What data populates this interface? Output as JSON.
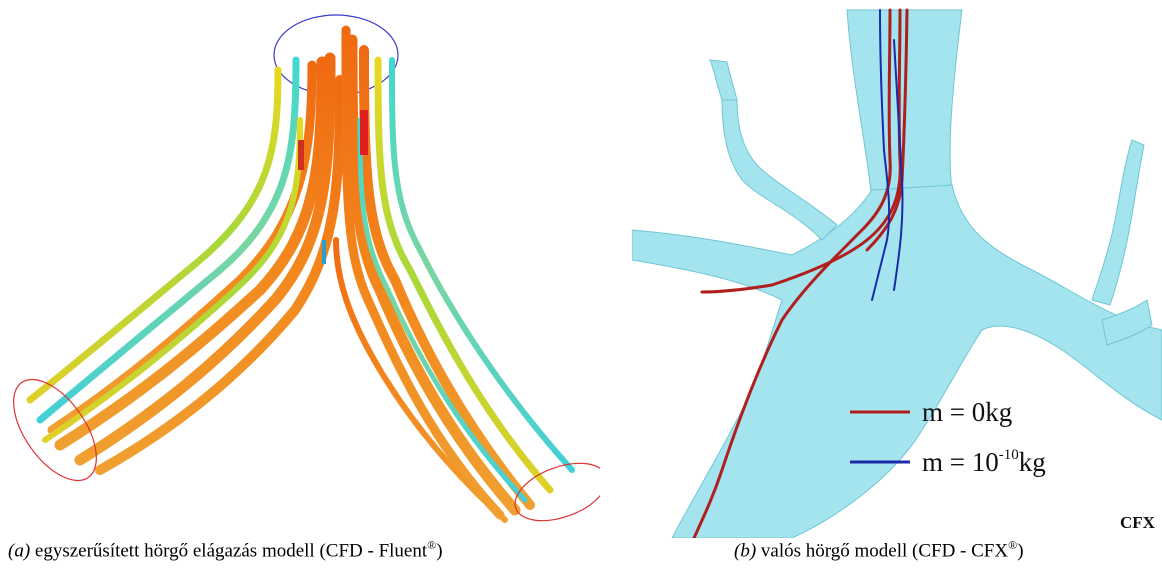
{
  "figure": {
    "panel_a": {
      "caption_label": "(a)",
      "caption_text": " egyszerűsített hörgő elágazás modell (CFD - Fluent",
      "caption_reg": "®",
      "caption_close": ")"
    },
    "panel_b": {
      "caption_label": "(b)",
      "caption_text": " valós hörgő modell (CFD - CFX",
      "caption_reg": "®",
      "caption_close": ")",
      "legend": [
        {
          "prefix": "m = 0kg",
          "color": "#b01e1e"
        },
        {
          "prefix": "m = 10",
          "exponent": "-10",
          "suffix": "kg",
          "color": "#1a2aa8"
        }
      ],
      "watermark": "CFX"
    }
  },
  "colors": {
    "airway": "#9fe3ef",
    "orange": "#f07c1a",
    "yellow": "#e8d220",
    "green": "#88d24a",
    "cyan": "#35d8d8",
    "red_particle": "#b01e1e",
    "blue_particle": "#1a2aa8",
    "ellipse_blue": "#3a3ad0",
    "ellipse_red": "#e03030"
  }
}
